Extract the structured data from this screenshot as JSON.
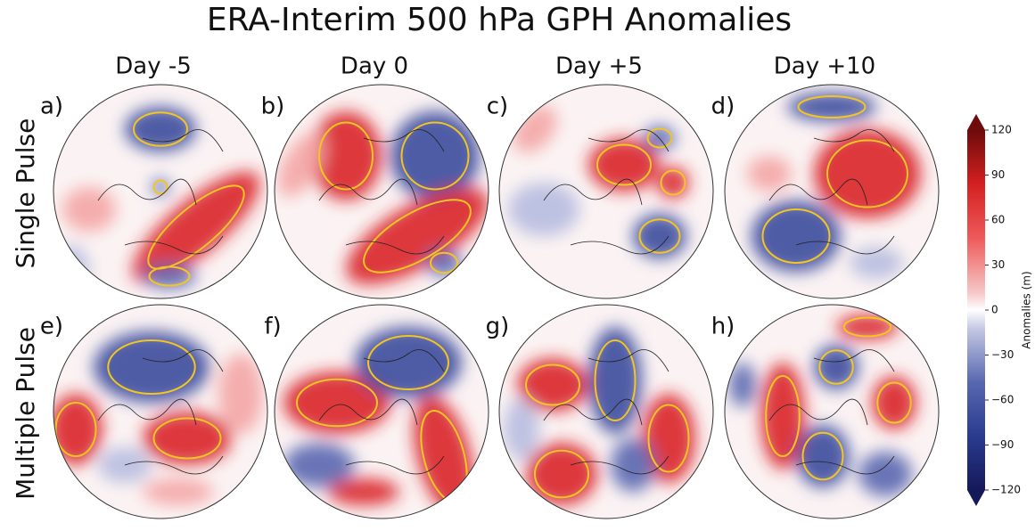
{
  "title": "ERA-Interim 500 hPa GPH Anomalies",
  "columns": [
    "Day -5",
    "Day 0",
    "Day +5",
    "Day +10"
  ],
  "rows": [
    "Single Pulse",
    "Multiple Pulse"
  ],
  "panels": [
    "a)",
    "b)",
    "c)",
    "d)",
    "e)",
    "f)",
    "g)",
    "h)"
  ],
  "colorbar": {
    "label": "Anomalies (m)",
    "ylim": [
      -120,
      120
    ],
    "yticks": [
      {
        "value": -120,
        "label": "−120"
      },
      {
        "value": -90,
        "label": "−90"
      },
      {
        "value": -60,
        "label": "−60"
      },
      {
        "value": -30,
        "label": "−30"
      },
      0,
      30,
      60,
      90,
      120
    ]
  }
}
